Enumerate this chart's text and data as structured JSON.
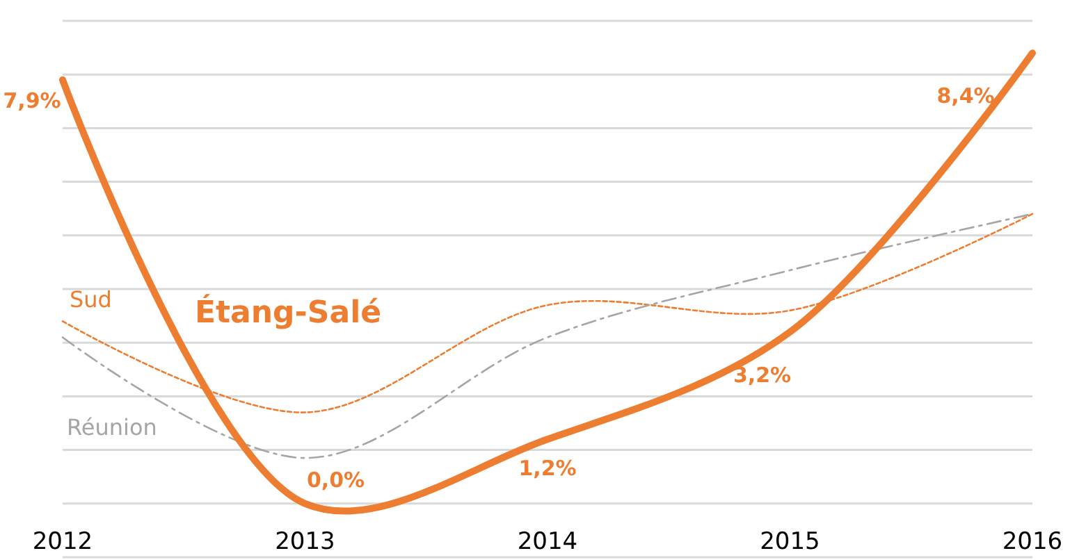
{
  "chart_data": {
    "type": "line",
    "x": [
      2012,
      2013,
      2014,
      2015,
      2016
    ],
    "xlim": [
      2012,
      2016
    ],
    "xticks": [
      2012,
      2013,
      2014,
      2015,
      2016
    ],
    "ylim": [
      -1,
      9
    ],
    "yticks": [
      {
        "value": -1,
        "label": null
      },
      {
        "value": 0,
        "label": null
      },
      {
        "value": 1,
        "label": null
      },
      {
        "value": 2,
        "label": null
      },
      {
        "value": 3,
        "label": null
      },
      {
        "value": 4,
        "label": null
      },
      {
        "value": 5,
        "label": null
      },
      {
        "value": 6,
        "label": null
      },
      {
        "value": 7,
        "label": null
      },
      {
        "value": 8,
        "label": null
      },
      {
        "value": 9,
        "label": null
      }
    ],
    "tick_labels": "x",
    "grid": "y",
    "marker": "none",
    "series": [
      {
        "name": "Sud",
        "color": "#ed7d31",
        "line_style": "dotted",
        "values": [
          3.4,
          1.7,
          3.7,
          3.6,
          5.4
        ]
      },
      {
        "name": "Réunion",
        "color": "#a5a5a5",
        "line_style": "dashed",
        "values": [
          3.1,
          0.85,
          3.1,
          4.35,
          5.4
        ]
      },
      {
        "name": "Étang-Salé",
        "color": "#ed7d31",
        "line_style": "solid",
        "values": [
          7.9,
          0.0,
          1.2,
          3.2,
          8.4
        ],
        "value_labels": [
          "7,9%",
          "0,0%",
          "1,2%",
          "3,2%",
          "8,4%"
        ]
      }
    ]
  }
}
